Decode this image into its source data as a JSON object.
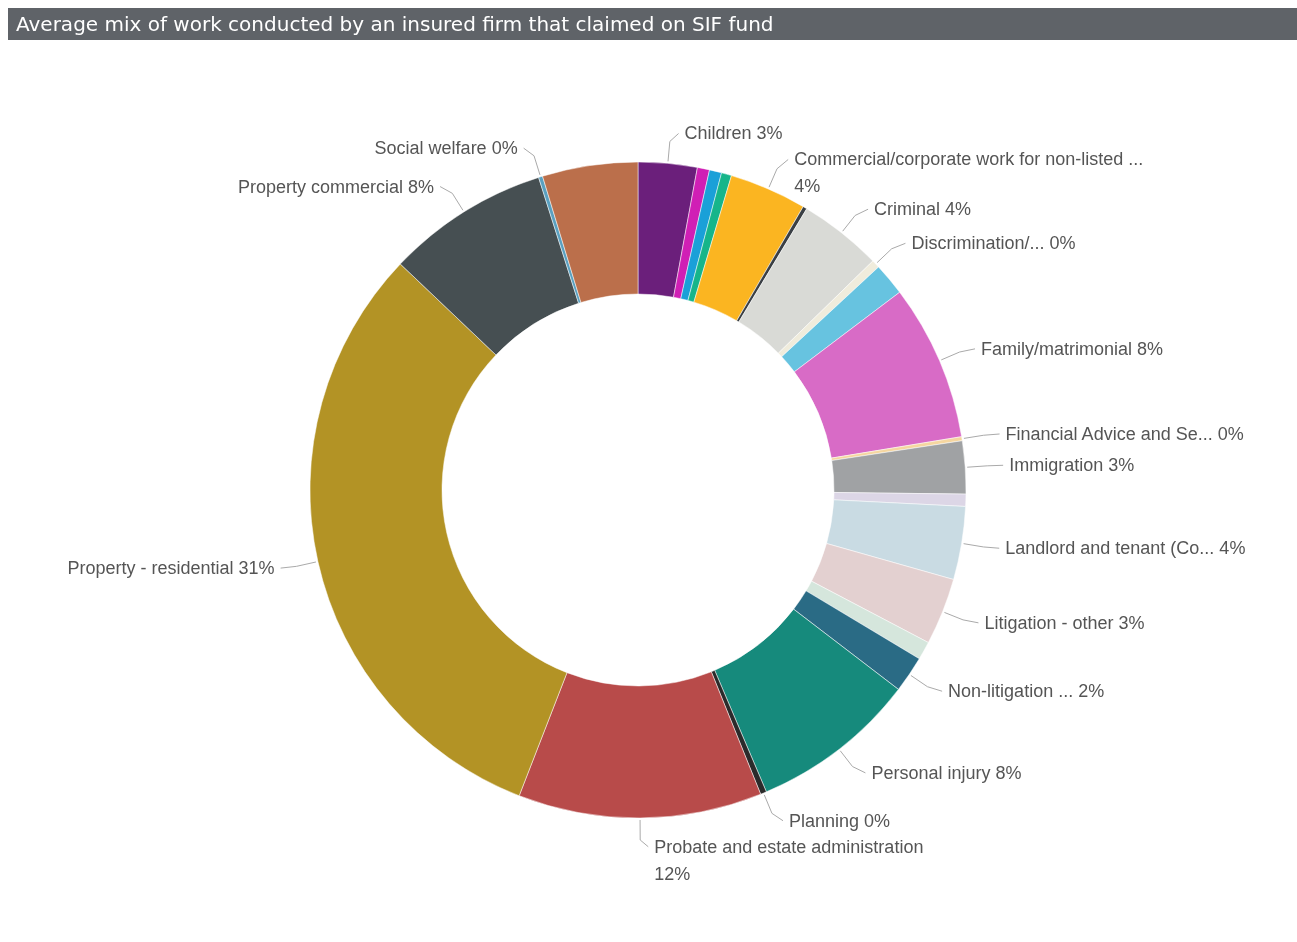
{
  "chart_data": {
    "type": "donut",
    "title": "Average mix of work conducted by an insured firm that claimed on SIF fund",
    "categories": [
      "Children",
      null,
      null,
      null,
      "Commercial/corporate work for non-listed ...",
      null,
      "Criminal",
      "Discrimination/...",
      null,
      "Family/matrimonial",
      "Financial Advice and Se...",
      "Immigration",
      null,
      "Landlord and tenant (Co...",
      "Litigation - other",
      null,
      "Non-litigation ...",
      "Personal injury",
      "Planning",
      "Probate and estate administration",
      "Property - residential",
      "Property commercial",
      "Social welfare",
      null
    ],
    "values": [
      2.9,
      0.6,
      0.6,
      0.5,
      3.8,
      0.2,
      4.1,
      0.4,
      1.6,
      7.7,
      0.2,
      2.6,
      0.6,
      3.6,
      3.3,
      0.9,
      1.8,
      8.2,
      0.3,
      12.0,
      31.2,
      8.0,
      0.2,
      4.7
    ],
    "value_labels": [
      "3%",
      null,
      null,
      null,
      "4%",
      null,
      "4%",
      "0%",
      null,
      "8%",
      "0%",
      "3%",
      null,
      "4%",
      "3%",
      null,
      "2%",
      "8%",
      "0%",
      "12%",
      "31%",
      "8%",
      "0%",
      null
    ],
    "colors": [
      "#6b1f7b",
      "#d01fb5",
      "#1aa0d8",
      "#16b58a",
      "#fbb521",
      "#3a3f44",
      "#d9dad6",
      "#f0ecdc",
      "#67c3e0",
      "#d86bc6",
      "#f5d6a0",
      "#a0a2a4",
      "#dcd6e6",
      "#c9dbe3",
      "#e3d0d0",
      "#d5e6dc",
      "#2a6b85",
      "#168a7c",
      "#2b2b2b",
      "#b84b4a",
      "#b39325",
      "#464f52",
      "#5aa0c0",
      "#bb6f4b"
    ]
  }
}
